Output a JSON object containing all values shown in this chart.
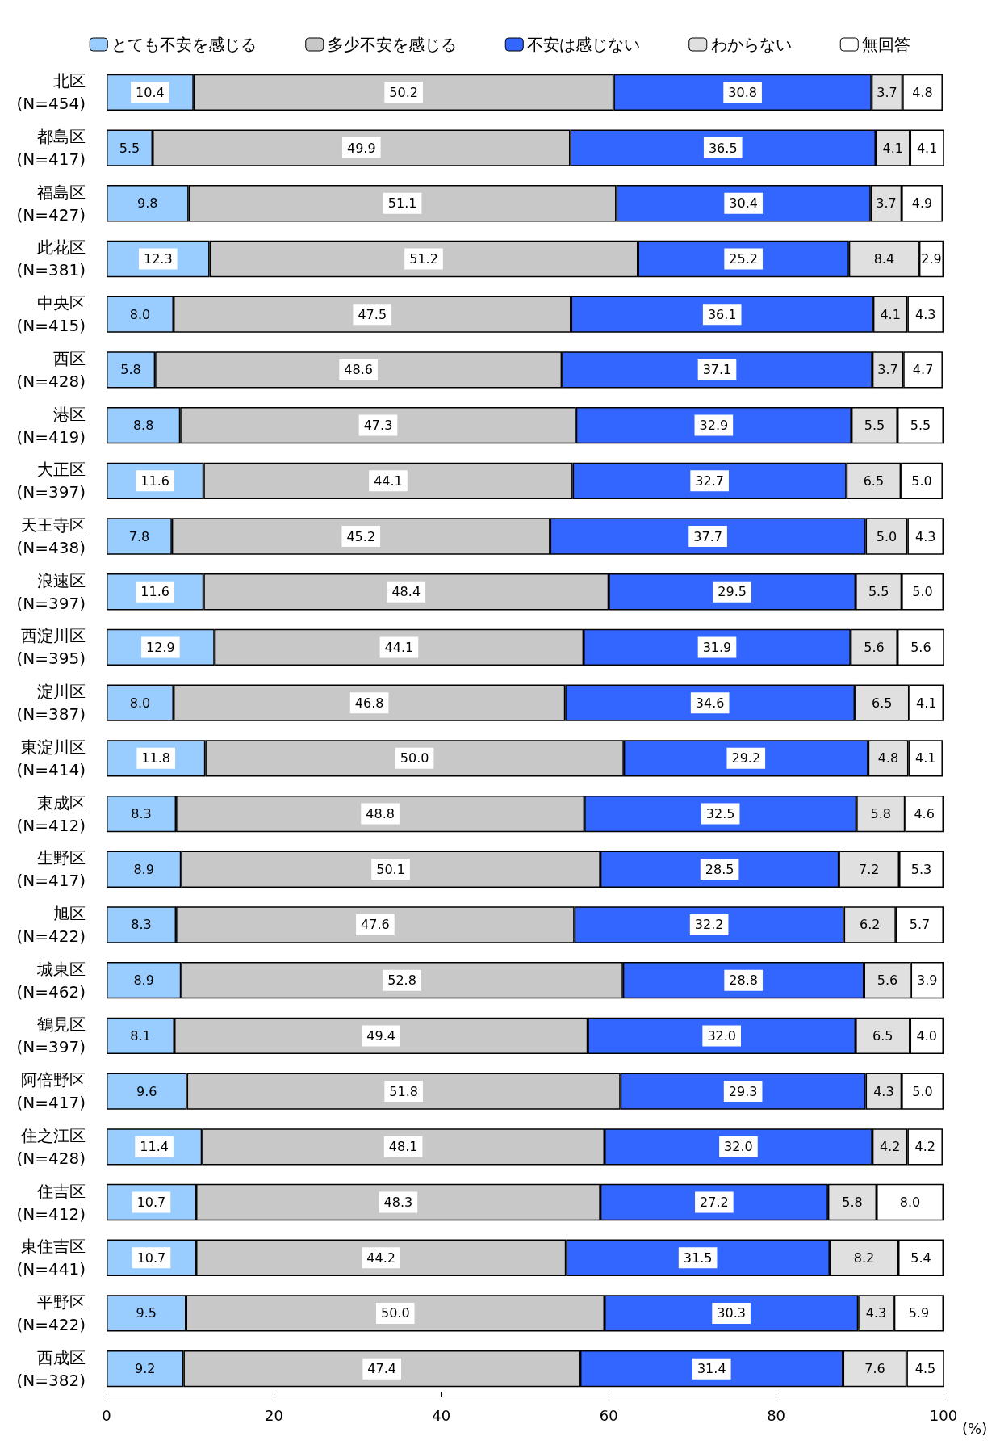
{
  "chart_data": {
    "type": "bar",
    "orientation": "horizontal",
    "stacked": true,
    "categories": [
      "北区\n(N=454)",
      "都島区\n(N=417)",
      "福島区\n(N=427)",
      "此花区\n(N=381)",
      "中央区\n(N=415)",
      "西区\n(N=428)",
      "港区\n(N=419)",
      "大正区\n(N=397)",
      "天王寺区\n(N=438)",
      "浪速区\n(N=397)",
      "西淀川区\n(N=395)",
      "淀川区\n(N=387)",
      "東淀川区\n(N=414)",
      "東成区\n(N=412)",
      "生野区\n(N=417)",
      "旭区\n(N=422)",
      "城東区\n(N=462)",
      "鶴見区\n(N=397)",
      "阿倍野区\n(N=417)",
      "住之江区\n(N=428)",
      "住吉区\n(N=412)",
      "東住吉区\n(N=441)",
      "平野区\n(N=422)",
      "西成区\n(N=382)"
    ],
    "series": [
      {
        "name": "とても不安を感じる",
        "color": "#99ccff",
        "values": [
          10.4,
          5.5,
          9.8,
          12.3,
          8.0,
          5.8,
          8.8,
          11.6,
          7.8,
          11.6,
          12.9,
          8.0,
          11.8,
          8.3,
          8.9,
          8.3,
          8.9,
          8.1,
          9.6,
          11.4,
          10.7,
          10.7,
          9.5,
          9.2
        ],
        "value_labels": [
          "10.4",
          "5.5",
          "9.8",
          "12.3",
          "8.0",
          "5.8",
          "8.8",
          "11.6",
          "7.8",
          "11.6",
          "12.9",
          "8.0",
          "11.8",
          "8.3",
          "8.9",
          "8.3",
          "8.9",
          "8.1",
          "9.6",
          "11.4",
          "10.7",
          "10.7",
          "9.5",
          "9.2"
        ]
      },
      {
        "name": "多少不安を感じる",
        "color": "#c8c8c8",
        "values": [
          50.2,
          49.9,
          51.1,
          51.2,
          47.5,
          48.6,
          47.3,
          44.1,
          45.2,
          48.4,
          44.1,
          46.8,
          50.0,
          48.8,
          50.1,
          47.6,
          52.8,
          49.4,
          51.8,
          48.1,
          48.3,
          44.2,
          50.0,
          47.4
        ],
        "value_labels": [
          "50.2",
          "49.9",
          "51.1",
          "51.2",
          "47.5",
          "48.6",
          "47.3",
          "44.1",
          "45.2",
          "48.4",
          "44.1",
          "46.8",
          "50.0",
          "48.8",
          "50.1",
          "47.6",
          "52.8",
          "49.4",
          "51.8",
          "48.1",
          "48.3",
          "44.2",
          "50.0",
          "47.4"
        ]
      },
      {
        "name": "不安は感じない",
        "color": "#3366ff",
        "values": [
          30.8,
          36.5,
          30.4,
          25.2,
          36.1,
          37.1,
          32.9,
          32.7,
          37.7,
          29.5,
          31.9,
          34.6,
          29.2,
          32.5,
          28.5,
          32.2,
          28.8,
          32.0,
          29.3,
          32.0,
          27.2,
          31.5,
          30.3,
          31.4
        ],
        "value_labels": [
          "30.8",
          "36.5",
          "30.4",
          "25.2",
          "36.1",
          "37.1",
          "32.9",
          "32.7",
          "37.7",
          "29.5",
          "31.9",
          "34.6",
          "29.2",
          "32.5",
          "28.5",
          "32.2",
          "28.8",
          "32.0",
          "29.3",
          "32.0",
          "27.2",
          "31.5",
          "30.3",
          "31.4"
        ]
      },
      {
        "name": "わからない",
        "color": "#e0e0e0",
        "values": [
          3.7,
          4.1,
          3.7,
          8.4,
          4.1,
          3.7,
          5.5,
          6.5,
          5.0,
          5.5,
          5.6,
          6.5,
          4.8,
          5.8,
          7.2,
          6.2,
          5.6,
          6.5,
          4.3,
          4.2,
          5.8,
          8.2,
          4.3,
          7.6
        ],
        "value_labels": [
          "3.7",
          "4.1",
          "3.7",
          "8.4",
          "4.1",
          "3.7",
          "5.5",
          "6.5",
          "5.0",
          "5.5",
          "5.6",
          "6.5",
          "4.8",
          "5.8",
          "7.2",
          "6.2",
          "5.6",
          "6.5",
          "4.3",
          "4.2",
          "5.8",
          "8.2",
          "4.3",
          "7.6"
        ]
      },
      {
        "name": "無回答",
        "color": "#ffffff",
        "values": [
          4.8,
          4.1,
          4.9,
          2.9,
          4.3,
          4.7,
          5.5,
          5.0,
          4.3,
          5.0,
          5.6,
          4.1,
          4.1,
          4.6,
          5.3,
          5.7,
          3.9,
          4.0,
          5.0,
          4.2,
          8.0,
          5.4,
          5.9,
          4.5
        ],
        "value_labels": [
          "4.8",
          "4.1",
          "4.9",
          "2.9",
          "4.3",
          "4.7",
          "5.5",
          "5.0",
          "4.3",
          "5.0",
          "5.6",
          "4.1",
          "4.1",
          "4.6",
          "5.3",
          "5.7",
          "3.9",
          "4.0",
          "5.0",
          "4.2",
          "8.0",
          "5.4",
          "5.9",
          "4.5"
        ]
      }
    ],
    "xlim": [
      0,
      100
    ],
    "xticks": [
      0,
      20,
      40,
      60,
      80,
      100
    ],
    "xlabel": "(%)",
    "grid": false,
    "legend": "top"
  }
}
